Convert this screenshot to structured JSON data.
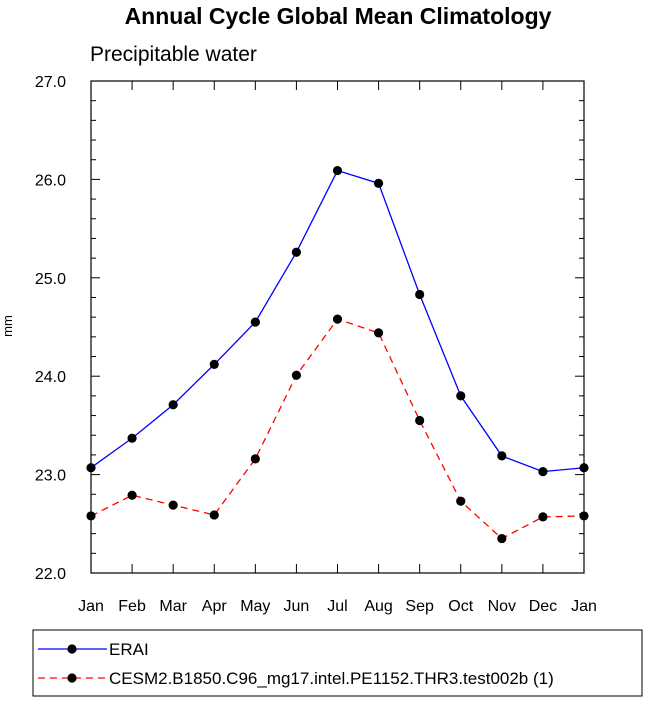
{
  "chart_data": {
    "type": "line",
    "title": "Annual Cycle Global Mean Climatology",
    "subtitle": "Precipitable water",
    "xlabel": "",
    "ylabel": "mm",
    "categories": [
      "Jan",
      "Feb",
      "Mar",
      "Apr",
      "May",
      "Jun",
      "Jul",
      "Aug",
      "Sep",
      "Oct",
      "Nov",
      "Dec",
      "Jan"
    ],
    "ylim": [
      22.0,
      27.0
    ],
    "yticks": [
      "22.0",
      "23.0",
      "24.0",
      "25.0",
      "26.0",
      "27.0"
    ],
    "grid": false,
    "legend_position": "bottom",
    "series": [
      {
        "name": "ERAI",
        "color": "#0000ff",
        "dash": "solid",
        "values": [
          23.07,
          23.37,
          23.71,
          24.12,
          24.55,
          25.26,
          26.09,
          25.96,
          24.83,
          23.8,
          23.19,
          23.03,
          23.07
        ]
      },
      {
        "name": "CESM2.B1850.C96_mg17.intel.PE1152.THR3.test002b (1)",
        "color": "#ff0000",
        "dash": "dashed",
        "values": [
          22.58,
          22.79,
          22.69,
          22.59,
          23.16,
          24.01,
          24.58,
          24.44,
          23.55,
          22.73,
          22.35,
          22.57,
          22.58
        ]
      }
    ]
  }
}
